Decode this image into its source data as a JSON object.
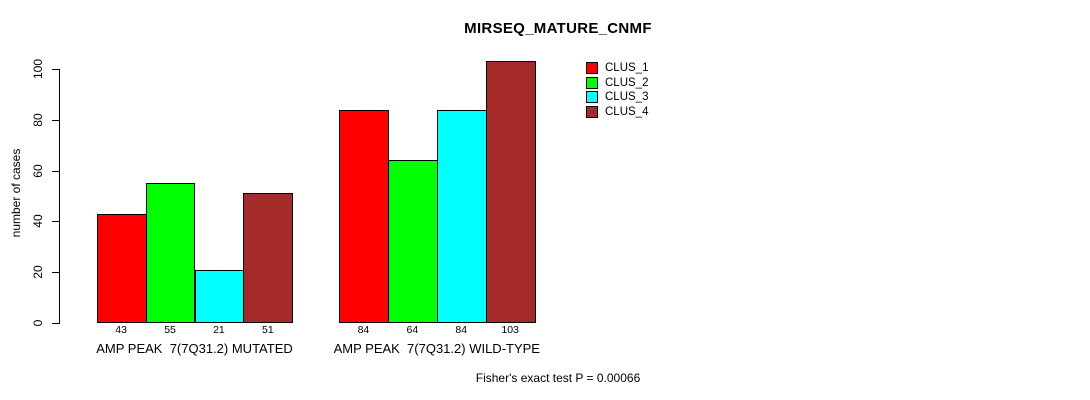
{
  "window": {
    "background": "#FFFFFF"
  },
  "chart_data": {
    "type": "bar",
    "title": "MIRSEQ_MATURE_CNMF",
    "ylabel": "number of cases",
    "xlabel": "",
    "ylim": [
      0,
      100
    ],
    "yticks": [
      0,
      20,
      40,
      60,
      80,
      100
    ],
    "grid": false,
    "legend_position": "top-right",
    "bar_value_labels": true,
    "categories": [
      "AMP PEAK  7(7Q31.2) MUTATED",
      "AMP PEAK  7(7Q31.2) WILD-TYPE"
    ],
    "series": [
      {
        "name": "CLUS_1",
        "color": "#FF0000",
        "values": [
          43,
          84
        ]
      },
      {
        "name": "CLUS_2",
        "color": "#00FF00",
        "values": [
          55,
          64
        ]
      },
      {
        "name": "CLUS_3",
        "color": "#00FFFF",
        "values": [
          21,
          84
        ]
      },
      {
        "name": "CLUS_4",
        "color": "#A52A2A",
        "values": [
          51,
          103
        ]
      }
    ],
    "annotation": "Fisher's exact test P = 0.00066"
  }
}
